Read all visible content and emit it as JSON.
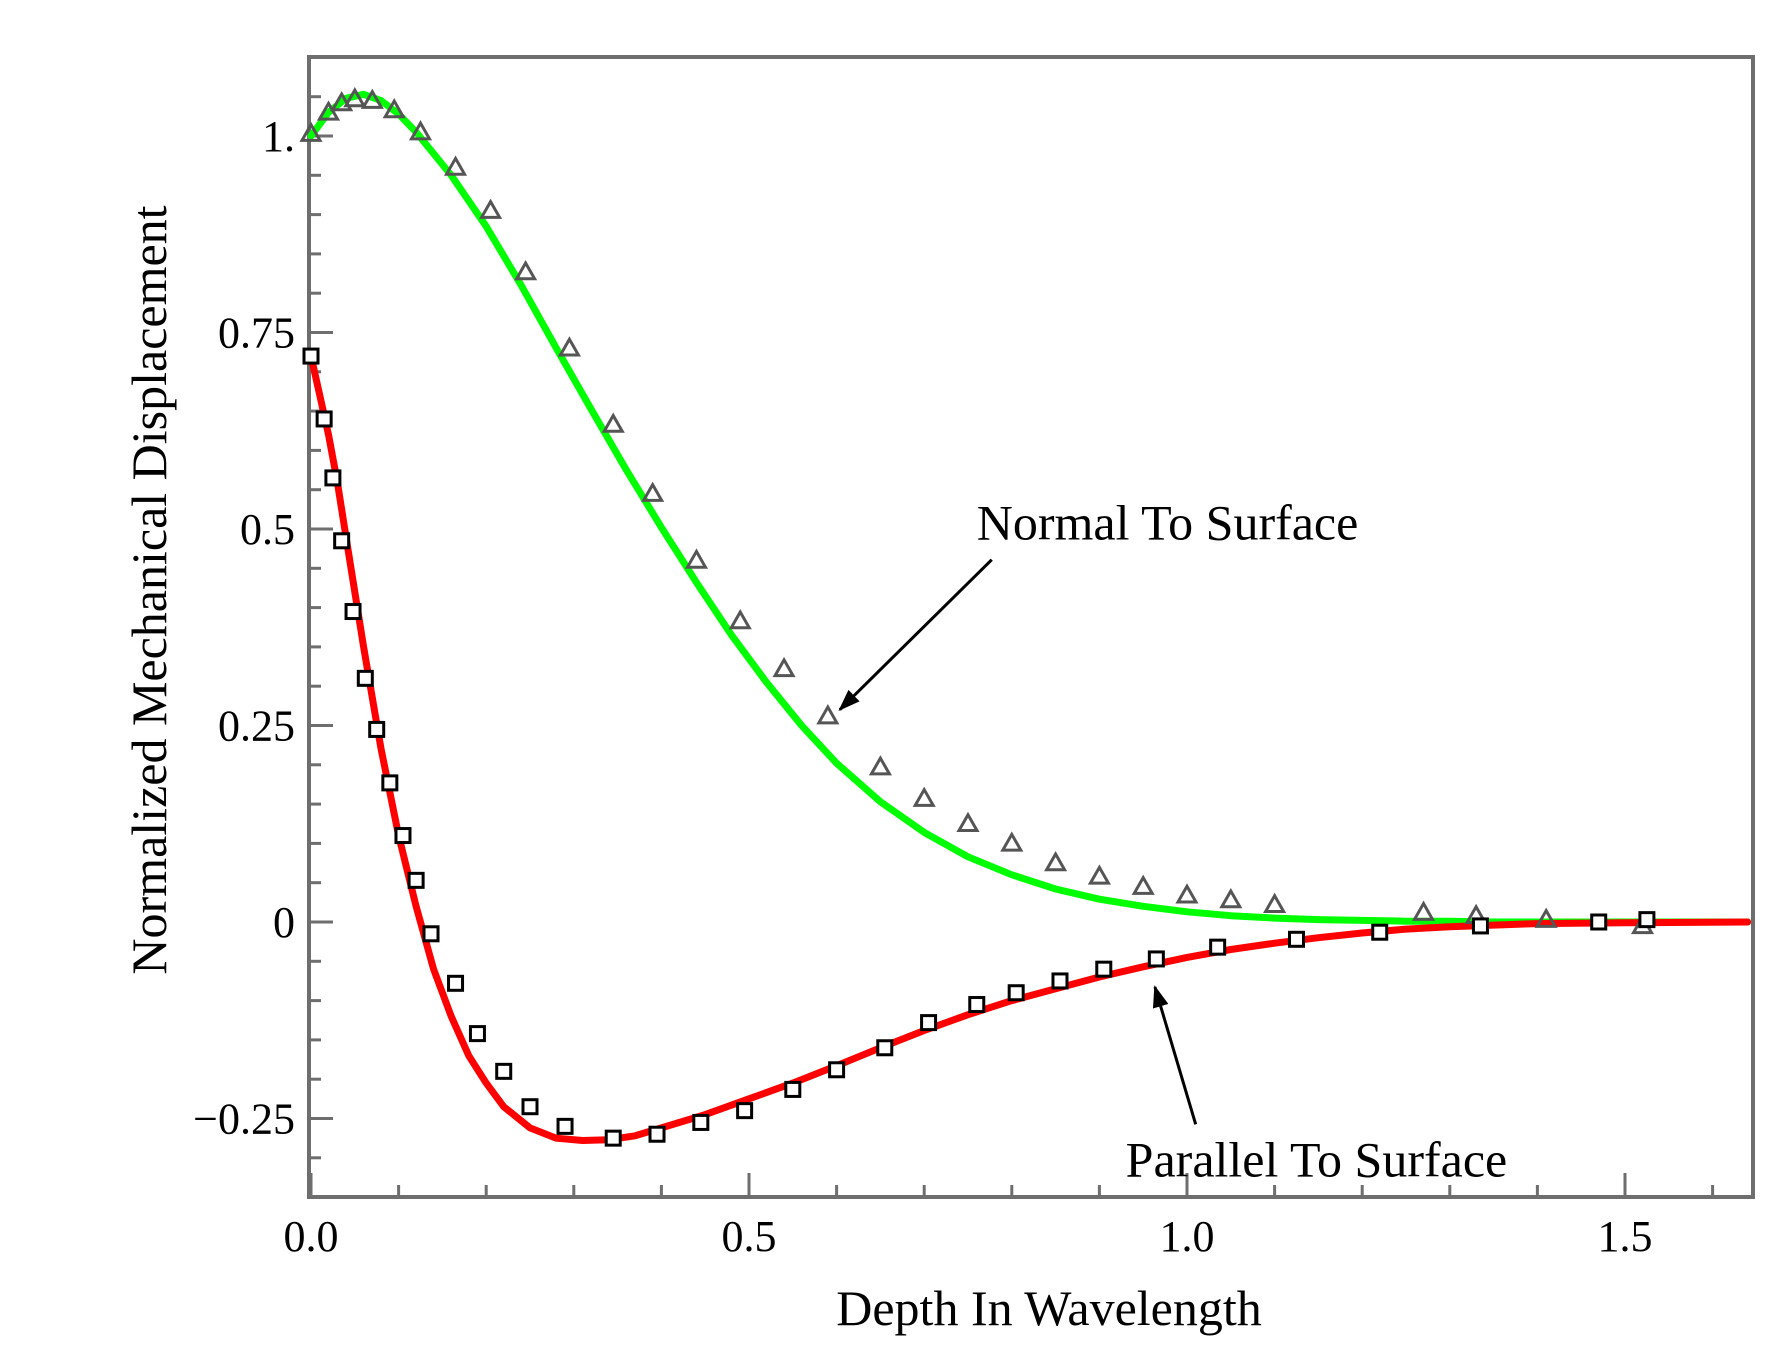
{
  "chart_data": {
    "type": "line",
    "title": "",
    "xlabel": "Depth In Wavelength",
    "ylabel": "Normalized Mechanical Displacement",
    "xlim": [
      0,
      1.64
    ],
    "ylim": [
      -0.35,
      1.11
    ],
    "x_ticks": [
      {
        "value": 0.0,
        "label": "0.0"
      },
      {
        "value": 0.5,
        "label": "0.5"
      },
      {
        "value": 1.0,
        "label": "1.0"
      },
      {
        "value": 1.5,
        "label": "1.5"
      }
    ],
    "y_ticks": [
      {
        "value": -0.25,
        "label": "−0.25"
      },
      {
        "value": 0,
        "label": "0"
      },
      {
        "value": 0.25,
        "label": "0.25"
      },
      {
        "value": 0.5,
        "label": "0.5"
      },
      {
        "value": 0.75,
        "label": "0.75"
      },
      {
        "value": 1.0,
        "label": "1."
      }
    ],
    "grid": false,
    "legend": "none",
    "series": [
      {
        "name": "Normal To Surface",
        "color": "#00ff00",
        "marker": "triangle",
        "marker_color": "#555555",
        "curve": {
          "x": [
            0,
            0.02,
            0.04,
            0.06,
            0.08,
            0.1,
            0.12,
            0.16,
            0.2,
            0.24,
            0.28,
            0.32,
            0.36,
            0.4,
            0.44,
            0.48,
            0.52,
            0.56,
            0.6,
            0.65,
            0.7,
            0.75,
            0.8,
            0.85,
            0.9,
            0.95,
            1.0,
            1.05,
            1.1,
            1.15,
            1.2,
            1.25,
            1.3,
            1.35,
            1.4,
            1.5,
            1.64
          ],
          "y": [
            1.0,
            1.03,
            1.048,
            1.053,
            1.045,
            1.028,
            1.005,
            0.95,
            0.885,
            0.81,
            0.73,
            0.652,
            0.575,
            0.502,
            0.432,
            0.365,
            0.305,
            0.25,
            0.202,
            0.153,
            0.114,
            0.083,
            0.06,
            0.042,
            0.029,
            0.02,
            0.013,
            0.008,
            0.005,
            0.003,
            0.002,
            0.001,
            0.001,
            0.0,
            0.0,
            0.0,
            0.0
          ]
        },
        "points": {
          "x": [
            0.0,
            0.02,
            0.035,
            0.05,
            0.07,
            0.095,
            0.125,
            0.165,
            0.205,
            0.245,
            0.295,
            0.345,
            0.39,
            0.44,
            0.49,
            0.54,
            0.59,
            0.65,
            0.7,
            0.75,
            0.8,
            0.85,
            0.9,
            0.95,
            1.0,
            1.05,
            1.1,
            1.27,
            1.33,
            1.41,
            1.52
          ],
          "y": [
            1.003,
            1.03,
            1.042,
            1.047,
            1.045,
            1.033,
            1.005,
            0.96,
            0.905,
            0.827,
            0.73,
            0.633,
            0.545,
            0.46,
            0.383,
            0.322,
            0.262,
            0.197,
            0.157,
            0.125,
            0.1,
            0.075,
            0.058,
            0.045,
            0.034,
            0.028,
            0.022,
            0.012,
            0.008,
            0.003,
            -0.005
          ]
        }
      },
      {
        "name": "Parallel To Surface",
        "color": "#ff0000",
        "marker": "square",
        "marker_color": "#000000",
        "curve": {
          "x": [
            0,
            0.01,
            0.02,
            0.03,
            0.04,
            0.05,
            0.06,
            0.08,
            0.1,
            0.12,
            0.14,
            0.16,
            0.18,
            0.2,
            0.22,
            0.25,
            0.28,
            0.31,
            0.34,
            0.37,
            0.4,
            0.45,
            0.5,
            0.55,
            0.6,
            0.65,
            0.7,
            0.75,
            0.8,
            0.85,
            0.9,
            0.95,
            1.0,
            1.05,
            1.1,
            1.15,
            1.2,
            1.25,
            1.3,
            1.35,
            1.4,
            1.5,
            1.64
          ],
          "y": [
            0.72,
            0.67,
            0.62,
            0.56,
            0.49,
            0.42,
            0.35,
            0.22,
            0.11,
            0.02,
            -0.06,
            -0.12,
            -0.17,
            -0.205,
            -0.235,
            -0.262,
            -0.275,
            -0.278,
            -0.277,
            -0.272,
            -0.262,
            -0.245,
            -0.225,
            -0.205,
            -0.183,
            -0.16,
            -0.138,
            -0.118,
            -0.1,
            -0.085,
            -0.07,
            -0.057,
            -0.045,
            -0.035,
            -0.027,
            -0.02,
            -0.014,
            -0.009,
            -0.006,
            -0.004,
            -0.002,
            -0.001,
            0.0
          ]
        },
        "points": {
          "x": [
            0.0,
            0.015,
            0.025,
            0.035,
            0.048,
            0.062,
            0.075,
            0.09,
            0.105,
            0.12,
            0.137,
            0.165,
            0.19,
            0.22,
            0.25,
            0.29,
            0.345,
            0.395,
            0.445,
            0.495,
            0.55,
            0.6,
            0.655,
            0.705,
            0.76,
            0.805,
            0.855,
            0.905,
            0.965,
            1.035,
            1.125,
            1.22,
            1.335,
            1.47,
            1.525
          ],
          "y": [
            0.72,
            0.64,
            0.565,
            0.485,
            0.395,
            0.31,
            0.245,
            0.177,
            0.11,
            0.053,
            -0.015,
            -0.078,
            -0.142,
            -0.19,
            -0.235,
            -0.26,
            -0.275,
            -0.27,
            -0.255,
            -0.24,
            -0.213,
            -0.188,
            -0.16,
            -0.128,
            -0.105,
            -0.09,
            -0.075,
            -0.06,
            -0.047,
            -0.032,
            -0.022,
            -0.013,
            -0.005,
            0.0,
            0.003
          ]
        }
      }
    ],
    "annotations": [
      {
        "text": "Normal To Surface",
        "series": "Normal To Surface",
        "arrow_to": [
          0.59,
          0.26
        ],
        "text_at": [
          0.76,
          0.55
        ]
      },
      {
        "text": "Parallel To Surface",
        "series": "Parallel To Surface",
        "arrow_to": [
          0.96,
          -0.065
        ],
        "text_at": [
          0.93,
          -0.26
        ]
      }
    ]
  }
}
